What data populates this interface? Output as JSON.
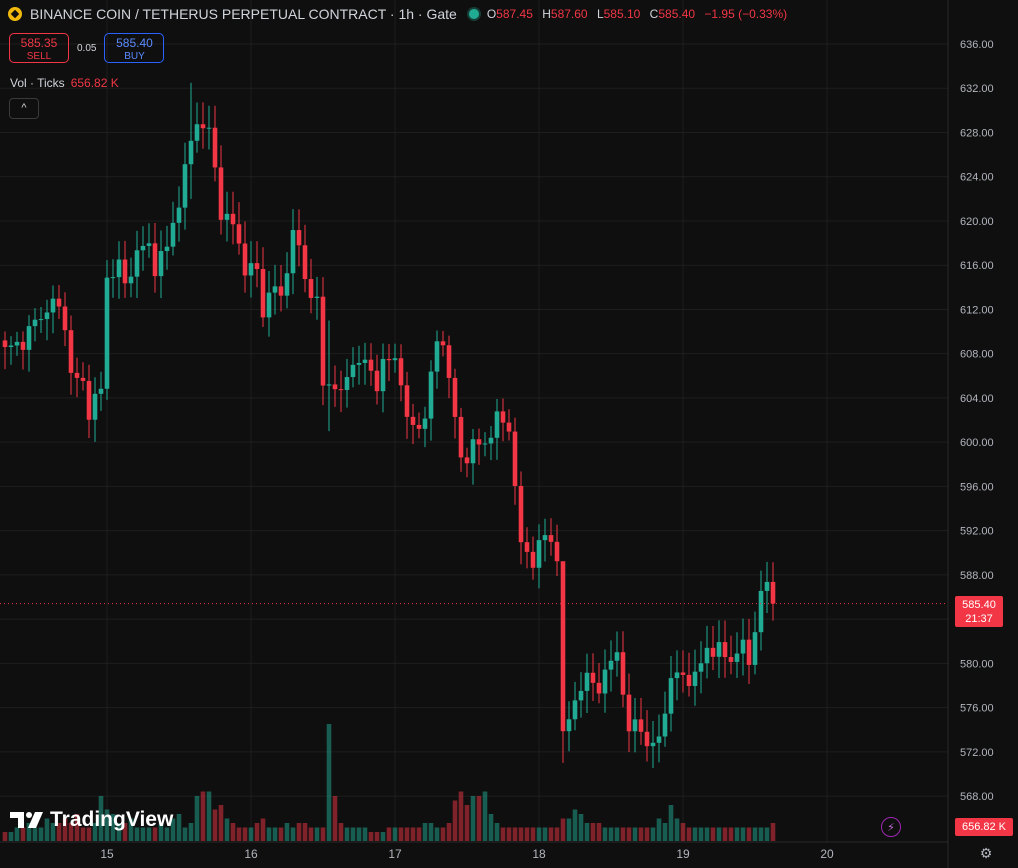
{
  "header": {
    "title": "BINANCE COIN / TETHERUS PERPETUAL CONTRACT · 1h · Gate",
    "ohlc": {
      "o_label": "O",
      "o": "587.45",
      "h_label": "H",
      "h": "587.60",
      "l_label": "L",
      "l": "585.10",
      "c_label": "C",
      "c": "585.40",
      "change": "−1.95 (−0.33%)"
    }
  },
  "trade": {
    "sell_price": "585.35",
    "sell_label": "SELL",
    "spread": "0.05",
    "buy_price": "585.40",
    "buy_label": "BUY"
  },
  "volume_legend": {
    "label": "Vol · Ticks",
    "value": "656.82 K"
  },
  "collapse_icon": "^",
  "logo_text": "TradingView",
  "last_price": {
    "price": "585.40",
    "countdown": "21:37"
  },
  "volume_tag": "656.82 K",
  "colors": {
    "up": "#22ab94",
    "down": "#f23645",
    "background": "#0f0f0f",
    "grid": "#1e1e1e"
  },
  "chart_data": {
    "type": "candlestick",
    "timeframe": "1h",
    "y_ticks": [
      "636.00",
      "632.00",
      "628.00",
      "624.00",
      "620.00",
      "616.00",
      "612.00",
      "608.00",
      "604.00",
      "600.00",
      "596.00",
      "592.00",
      "588.00",
      "584.00",
      "580.00",
      "576.00",
      "572.00",
      "568.00"
    ],
    "x_ticks": [
      {
        "label": "15",
        "index": 17
      },
      {
        "label": "16",
        "index": 41
      },
      {
        "label": "17",
        "index": 65
      },
      {
        "label": "18",
        "index": 89
      },
      {
        "label": "19",
        "index": 113
      },
      {
        "label": "20",
        "index": 137
      }
    ],
    "ylim": [
      565.5,
      638.5
    ],
    "last_price": 585.4,
    "close_path_anchors": [
      [
        0,
        608.2
      ],
      [
        3,
        609.2
      ],
      [
        6,
        611.5
      ],
      [
        8,
        612.6
      ],
      [
        10,
        611.0
      ],
      [
        11,
        606.0
      ],
      [
        13,
        605.2
      ],
      [
        14,
        603.0
      ],
      [
        16,
        604.6
      ],
      [
        17,
        615.0
      ],
      [
        19,
        616.0
      ],
      [
        20,
        614.0
      ],
      [
        22,
        617.3
      ],
      [
        24,
        617.6
      ],
      [
        25,
        616.0
      ],
      [
        27,
        617.5
      ],
      [
        29,
        622.0
      ],
      [
        31,
        627.0
      ],
      [
        32,
        629.2
      ],
      [
        34,
        628.0
      ],
      [
        35,
        624.5
      ],
      [
        36,
        621.0
      ],
      [
        38,
        619.5
      ],
      [
        40,
        616.0
      ],
      [
        41,
        615.5
      ],
      [
        42,
        615.5
      ],
      [
        43,
        611.5
      ],
      [
        44,
        614.0
      ],
      [
        46,
        613.0
      ],
      [
        47,
        616.0
      ],
      [
        48,
        619.0
      ],
      [
        49,
        617.5
      ],
      [
        50,
        614.5
      ],
      [
        51,
        614.0
      ],
      [
        52,
        612.5
      ],
      [
        53,
        605.0
      ],
      [
        55,
        605.5
      ],
      [
        56,
        604.0
      ],
      [
        58,
        607.5
      ],
      [
        60,
        607.0
      ],
      [
        62,
        605.5
      ],
      [
        63,
        607.0
      ],
      [
        65,
        607.5
      ],
      [
        66,
        606.0
      ],
      [
        67,
        601.5
      ],
      [
        69,
        601.5
      ],
      [
        70,
        602.5
      ],
      [
        72,
        609.0
      ],
      [
        73,
        609.5
      ],
      [
        74,
        605.5
      ],
      [
        75,
        602.0
      ],
      [
        76,
        598.5
      ],
      [
        78,
        599.5
      ],
      [
        80,
        600.0
      ],
      [
        82,
        602.0
      ],
      [
        84,
        601.5
      ],
      [
        85,
        596.0
      ],
      [
        86,
        590.5
      ],
      [
        88,
        589.5
      ],
      [
        90,
        591.5
      ],
      [
        91,
        591.0
      ],
      [
        92,
        590.0
      ],
      [
        93,
        573.0
      ],
      [
        94,
        575.0
      ],
      [
        95,
        577.0
      ],
      [
        97,
        578.5
      ],
      [
        99,
        578.0
      ],
      [
        101,
        580.0
      ],
      [
        102,
        581.0
      ],
      [
        103,
        578.0
      ],
      [
        104,
        573.0
      ],
      [
        105,
        575.0
      ],
      [
        106,
        574.0
      ],
      [
        108,
        572.0
      ],
      [
        109,
        573.5
      ],
      [
        111,
        578.5
      ],
      [
        113,
        579.0
      ],
      [
        115,
        578.5
      ],
      [
        117,
        581.5
      ],
      [
        119,
        581.0
      ],
      [
        121,
        580.5
      ],
      [
        123,
        581.5
      ],
      [
        124,
        580.0
      ],
      [
        125,
        583.5
      ],
      [
        126,
        586.0
      ],
      [
        127,
        587.2
      ],
      [
        128,
        585.4
      ]
    ],
    "spike_bars": [
      {
        "index": 54,
        "high": 611.0,
        "low": 601.0,
        "note": "large drop"
      },
      {
        "index": 93,
        "high": 589.0,
        "low": 571.0,
        "note": "large drop"
      },
      {
        "index": 31,
        "high": 632.5,
        "low": 622.0,
        "note": "local high"
      }
    ],
    "volume_heights": [
      2,
      2,
      3,
      3,
      4,
      3,
      3,
      5,
      4,
      4,
      5,
      4,
      6,
      3,
      3,
      4,
      10,
      7,
      6,
      4,
      4,
      5,
      3,
      3,
      3,
      3,
      4,
      3,
      5,
      6,
      3,
      4,
      10,
      11,
      11,
      7,
      8,
      5,
      4,
      3,
      3,
      3,
      4,
      5,
      3,
      3,
      3,
      4,
      3,
      4,
      4,
      3,
      3,
      3,
      26,
      10,
      4,
      3,
      3,
      3,
      3,
      2,
      2,
      2,
      3,
      3,
      3,
      3,
      3,
      3,
      4,
      4,
      3,
      3,
      4,
      9,
      11,
      8,
      10,
      10,
      11,
      6,
      4,
      3,
      3,
      3,
      3,
      3,
      3,
      3,
      3,
      3,
      3,
      5,
      5,
      7,
      6,
      4,
      4,
      4,
      3,
      3,
      3,
      3,
      3,
      3,
      3,
      3,
      3,
      5,
      4,
      8,
      5,
      4,
      3,
      3,
      3,
      3,
      3,
      3,
      3,
      3,
      3,
      3,
      3,
      3,
      3,
      3,
      4,
      6,
      5,
      4,
      3,
      3,
      3,
      3,
      3,
      3,
      3,
      3,
      2,
      6,
      4
    ]
  }
}
